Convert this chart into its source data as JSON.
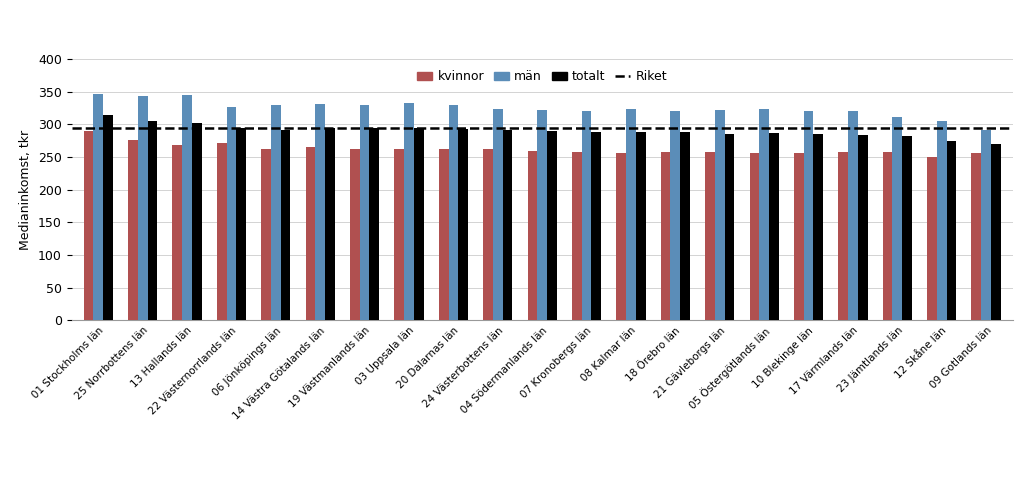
{
  "categories": [
    "01 Stockholms län",
    "25 Norrbottens län",
    "13 Hallands län",
    "22 Västernorrlands län",
    "06 Jönköpings län",
    "14 Västra Götalands län",
    "19 Västmanlands län",
    "03 Uppsala län",
    "20 Dalarnas län",
    "24 Västerbottens län",
    "04 Södermanlands län",
    "07 Kronobergs län",
    "08 Kalmar län",
    "18 Örebro län",
    "21 Gävleborgs län",
    "05 Östergötlands län",
    "10 Blekinge län",
    "17 Värmlands län",
    "23 Jämtlands län",
    "12 Skåne län",
    "09 Gotlands län"
  ],
  "kvinnor": [
    290,
    276,
    268,
    272,
    262,
    265,
    263,
    262,
    263,
    263,
    260,
    258,
    256,
    258,
    258,
    257,
    257,
    258,
    258,
    250,
    257
  ],
  "man": [
    347,
    344,
    345,
    326,
    330,
    331,
    330,
    333,
    330,
    323,
    322,
    320,
    324,
    320,
    322,
    323,
    320,
    320,
    312,
    305,
    292
  ],
  "totalt": [
    314,
    305,
    302,
    295,
    292,
    294,
    294,
    294,
    293,
    291,
    290,
    289,
    288,
    289,
    285,
    287,
    286,
    284,
    283,
    274,
    270
  ],
  "riket": 295,
  "ylabel": "Medianinkomst, tkr",
  "ylim": [
    0,
    400
  ],
  "yticks": [
    0,
    50,
    100,
    150,
    200,
    250,
    300,
    350,
    400
  ],
  "color_kvinnor": "#B05050",
  "color_man": "#5B8DB8",
  "color_totalt": "#000000",
  "color_riket": "#000000",
  "bg_color": "#FFFFFF",
  "legend_labels": [
    "kvinnor",
    "män",
    "totalt",
    "Riket"
  ]
}
